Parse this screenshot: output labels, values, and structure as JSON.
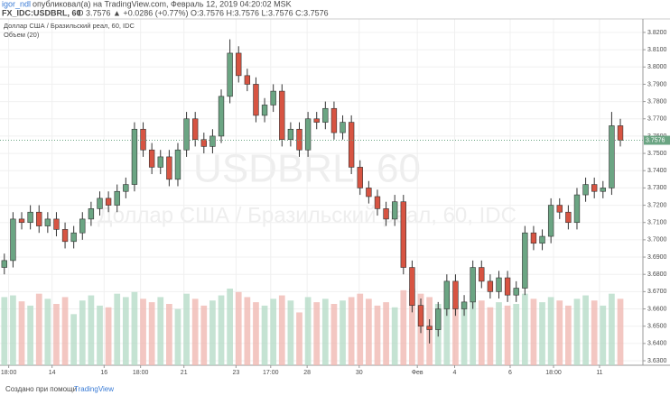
{
  "header": {
    "author": "igor_ndl",
    "published": "опубликовал(а) на TradingView.com, Февраль 12, 2019 04:20:02 MSK",
    "symbol": "FX_IDC:USDBRL, 60",
    "quote": "D 3.7576 ▲ +0.0286 (+0.77%) O:3.7576 H:3.7576 L:3.7576 C:3.7576"
  },
  "footer": {
    "text": "Создано при помощи",
    "brand": "TradingView"
  },
  "chart_data": {
    "type": "candlestick",
    "legend": [
      "Доллар США / Бразильский реал, 60, IDC",
      "Объем (20)"
    ],
    "watermark": [
      "USDBRL, 60",
      "Доллар США / Бразильский реал, 60, IDC"
    ],
    "last_price": {
      "value": 3.7576,
      "label": "3.7576"
    },
    "colors": {
      "up": "#6ba583",
      "down": "#d75442",
      "up_volume": "#b7dcc8",
      "down_volume": "#f0b9b3",
      "outline": "#225437"
    },
    "xlim": [
      -0.5,
      73.6
    ],
    "xticks": [
      {
        "value": 0.5,
        "label": "18:00"
      },
      {
        "value": 5.5,
        "label": "14"
      },
      {
        "value": 11.5,
        "label": "16"
      },
      {
        "value": 15.7,
        "label": "18:00"
      },
      {
        "value": 20.7,
        "label": "21"
      },
      {
        "value": 26.7,
        "label": "23"
      },
      {
        "value": 30.7,
        "label": "17:00"
      },
      {
        "value": 34.9,
        "label": "28"
      },
      {
        "value": 40.9,
        "label": "30"
      },
      {
        "value": 47.6,
        "label": "Фев"
      },
      {
        "value": 51.9,
        "label": "4"
      },
      {
        "value": 58.3,
        "label": "6"
      },
      {
        "value": 63.3,
        "label": "18:00"
      },
      {
        "value": 68.6,
        "label": "11"
      }
    ],
    "ylim": [
      3.6274,
      3.8278
    ],
    "yticks": [
      {
        "value": 3.63,
        "label": "3.6300"
      },
      {
        "value": 3.64,
        "label": "3.6400"
      },
      {
        "value": 3.65,
        "label": "3.6500"
      },
      {
        "value": 3.66,
        "label": "3.6600"
      },
      {
        "value": 3.67,
        "label": "3.6700"
      },
      {
        "value": 3.68,
        "label": "3.6800"
      },
      {
        "value": 3.69,
        "label": "3.6900"
      },
      {
        "value": 3.7,
        "label": "3.7000"
      },
      {
        "value": 3.71,
        "label": "3.7100"
      },
      {
        "value": 3.72,
        "label": "3.7200"
      },
      {
        "value": 3.73,
        "label": "3.7300"
      },
      {
        "value": 3.74,
        "label": "3.7400"
      },
      {
        "value": 3.75,
        "label": "3.7500"
      },
      {
        "value": 3.76,
        "label": "3.7600"
      },
      {
        "value": 3.77,
        "label": "3.7700"
      },
      {
        "value": 3.78,
        "label": "3.7800"
      },
      {
        "value": 3.79,
        "label": "3.7900"
      },
      {
        "value": 3.8,
        "label": "3.8000"
      },
      {
        "value": 3.81,
        "label": "3.8100"
      },
      {
        "value": 3.82,
        "label": "3.8200"
      }
    ],
    "grid": true,
    "open": [
      3.684,
      3.688,
      3.712,
      3.71,
      3.716,
      3.708,
      3.712,
      3.706,
      3.699,
      3.704,
      3.712,
      3.718,
      3.724,
      3.72,
      3.728,
      3.732,
      3.764,
      3.752,
      3.742,
      3.748,
      3.735,
      3.752,
      3.77,
      3.758,
      3.754,
      3.76,
      3.783,
      3.808,
      3.795,
      3.79,
      3.772,
      3.778,
      3.786,
      3.758,
      3.764,
      3.752,
      3.77,
      3.768,
      3.776,
      3.762,
      3.768,
      3.742,
      3.73,
      3.725,
      3.718,
      3.712,
      3.722,
      3.684,
      3.662,
      3.65,
      3.648,
      3.66,
      3.676,
      3.66,
      3.664,
      3.684,
      3.676,
      3.67,
      3.678,
      3.668,
      3.672,
      3.704,
      3.698,
      3.702,
      3.72,
      3.716,
      3.71,
      3.726,
      3.732,
      3.728,
      3.73,
      3.766
    ],
    "high": [
      3.692,
      3.716,
      3.716,
      3.72,
      3.72,
      3.716,
      3.716,
      3.71,
      3.708,
      3.716,
      3.722,
      3.728,
      3.728,
      3.732,
      3.736,
      3.768,
      3.768,
      3.756,
      3.752,
      3.752,
      3.756,
      3.774,
      3.774,
      3.762,
      3.764,
      3.787,
      3.816,
      3.812,
      3.799,
      3.794,
      3.782,
      3.79,
      3.79,
      3.768,
      3.768,
      3.774,
      3.774,
      3.78,
      3.78,
      3.772,
      3.772,
      3.746,
      3.734,
      3.729,
      3.722,
      3.726,
      3.726,
      3.688,
      3.666,
      3.654,
      3.664,
      3.68,
      3.68,
      3.668,
      3.688,
      3.688,
      3.68,
      3.682,
      3.682,
      3.676,
      3.708,
      3.708,
      3.706,
      3.724,
      3.724,
      3.72,
      3.73,
      3.736,
      3.736,
      3.734,
      3.774,
      3.77
    ],
    "low": [
      3.68,
      3.684,
      3.706,
      3.706,
      3.704,
      3.704,
      3.702,
      3.695,
      3.695,
      3.7,
      3.708,
      3.714,
      3.716,
      3.716,
      3.724,
      3.728,
      3.748,
      3.738,
      3.738,
      3.731,
      3.731,
      3.748,
      3.754,
      3.75,
      3.75,
      3.756,
      3.779,
      3.791,
      3.786,
      3.768,
      3.768,
      3.774,
      3.754,
      3.754,
      3.748,
      3.748,
      3.764,
      3.764,
      3.758,
      3.758,
      3.738,
      3.726,
      3.721,
      3.714,
      3.708,
      3.708,
      3.68,
      3.658,
      3.646,
      3.64,
      3.644,
      3.656,
      3.656,
      3.656,
      3.66,
      3.672,
      3.666,
      3.666,
      3.664,
      3.664,
      3.668,
      3.694,
      3.694,
      3.698,
      3.712,
      3.706,
      3.706,
      3.722,
      3.724,
      3.724,
      3.726,
      3.754
    ],
    "close": [
      3.688,
      3.712,
      3.71,
      3.716,
      3.708,
      3.712,
      3.706,
      3.699,
      3.704,
      3.712,
      3.718,
      3.724,
      3.72,
      3.728,
      3.732,
      3.764,
      3.752,
      3.742,
      3.748,
      3.735,
      3.752,
      3.77,
      3.758,
      3.754,
      3.76,
      3.783,
      3.808,
      3.795,
      3.79,
      3.772,
      3.778,
      3.786,
      3.758,
      3.764,
      3.752,
      3.77,
      3.768,
      3.776,
      3.762,
      3.768,
      3.742,
      3.73,
      3.725,
      3.718,
      3.712,
      3.722,
      3.684,
      3.662,
      3.65,
      3.648,
      3.66,
      3.676,
      3.66,
      3.664,
      3.684,
      3.676,
      3.67,
      3.678,
      3.668,
      3.672,
      3.704,
      3.698,
      3.702,
      3.72,
      3.716,
      3.71,
      3.726,
      3.732,
      3.728,
      3.73,
      3.766,
      3.7576
    ],
    "volume": [
      80,
      82,
      75,
      70,
      84,
      78,
      72,
      80,
      60,
      76,
      82,
      70,
      68,
      84,
      80,
      86,
      78,
      74,
      80,
      72,
      66,
      84,
      78,
      70,
      76,
      82,
      90,
      86,
      80,
      74,
      70,
      78,
      82,
      76,
      62,
      80,
      74,
      78,
      72,
      76,
      80,
      84,
      78,
      70,
      74,
      68,
      88,
      90,
      84,
      80,
      72,
      78,
      70,
      74,
      82,
      76,
      68,
      74,
      70,
      72,
      84,
      78,
      74,
      80,
      76,
      70,
      78,
      82,
      76,
      70,
      84,
      78
    ]
  }
}
